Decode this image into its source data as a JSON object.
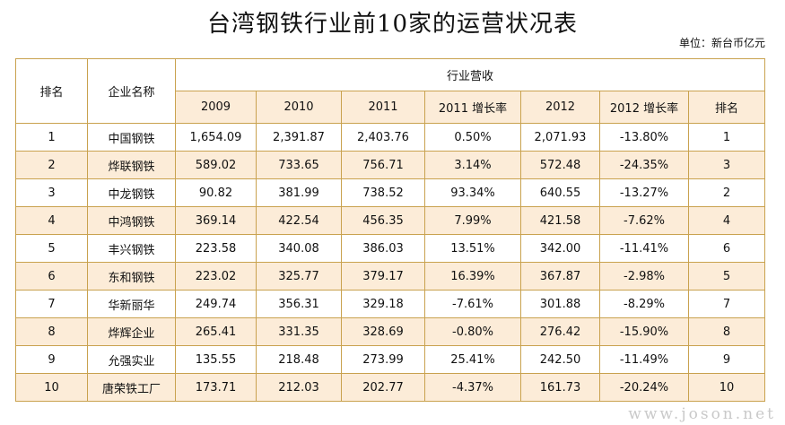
{
  "header": {
    "title": "台湾钢铁行业前10家的运营状况表",
    "unit": "单位：新台币亿元"
  },
  "table": {
    "header_top": [
      "排名",
      "企业名称",
      "行业营收"
    ],
    "header_sub": [
      "2009",
      "2010",
      "2011",
      "2011 增长率",
      "2012",
      "2012 增长率",
      "排名"
    ],
    "rows": [
      [
        "1",
        "中国钢铁",
        "1,654.09",
        "2,391.87",
        "2,403.76",
        "0.50%",
        "2,071.93",
        "-13.80%",
        "1"
      ],
      [
        "2",
        "烨联钢铁",
        "589.02",
        "733.65",
        "756.71",
        "3.14%",
        "572.48",
        "-24.35%",
        "3"
      ],
      [
        "3",
        "中龙钢铁",
        "90.82",
        "381.99",
        "738.52",
        "93.34%",
        "640.55",
        "-13.27%",
        "2"
      ],
      [
        "4",
        "中鸿钢铁",
        "369.14",
        "422.54",
        "456.35",
        "7.99%",
        "421.58",
        "-7.62%",
        "4"
      ],
      [
        "5",
        "丰兴钢铁",
        "223.58",
        "340.08",
        "386.03",
        "13.51%",
        "342.00",
        "-11.41%",
        "6"
      ],
      [
        "6",
        "东和钢铁",
        "223.02",
        "325.77",
        "379.17",
        "16.39%",
        "367.87",
        "-2.98%",
        "5"
      ],
      [
        "7",
        "华新丽华",
        "249.74",
        "356.31",
        "329.18",
        "-7.61%",
        "301.88",
        "-8.29%",
        "7"
      ],
      [
        "8",
        "烨辉企业",
        "265.41",
        "331.35",
        "328.69",
        "-0.80%",
        "276.42",
        "-15.90%",
        "8"
      ],
      [
        "9",
        "允强实业",
        "135.55",
        "218.48",
        "273.99",
        "25.41%",
        "242.50",
        "-11.49%",
        "9"
      ],
      [
        "10",
        "唐荣铁工厂",
        "173.71",
        "212.03",
        "202.77",
        "-4.37%",
        "161.73",
        "-20.24%",
        "10"
      ]
    ]
  },
  "watermark": "www.joson.net"
}
